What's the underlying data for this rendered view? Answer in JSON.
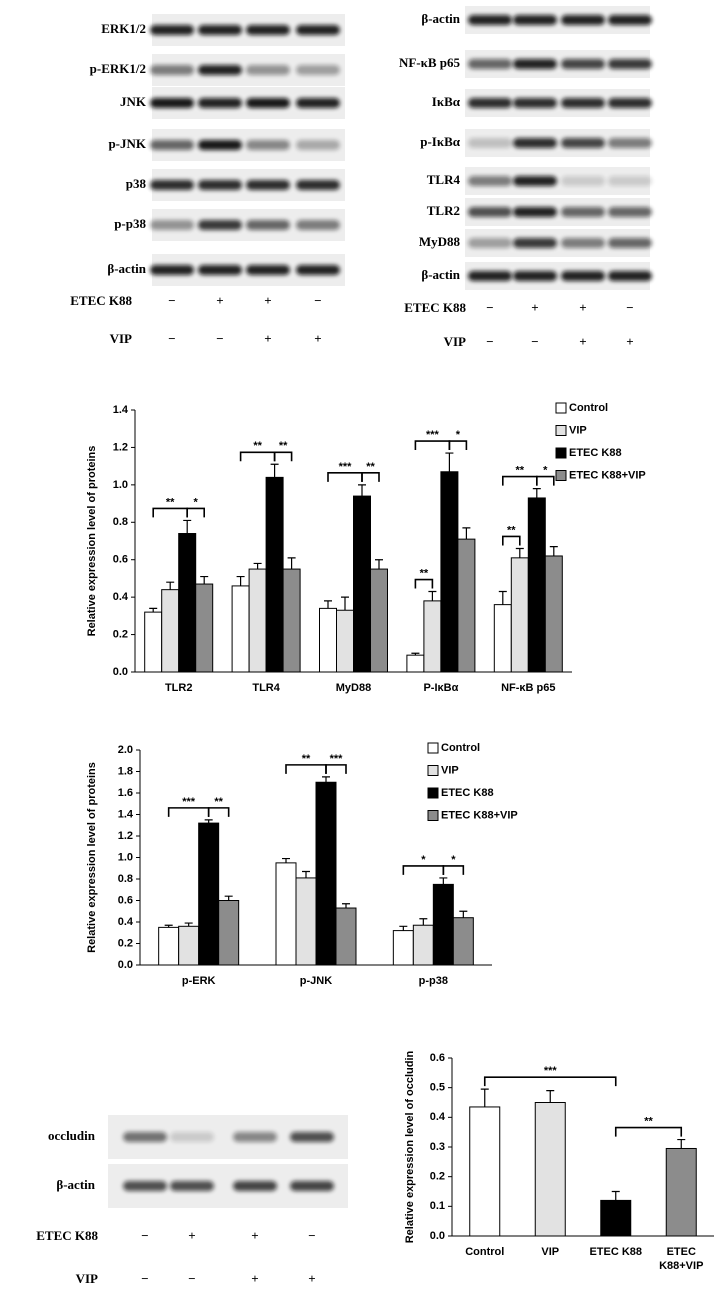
{
  "blots": [
    {
      "rows": [
        {
          "label": "ERK1/2"
        },
        {
          "label": "p-ERK1/2"
        },
        {
          "label": "JNK"
        },
        {
          "label": "p-JNK"
        },
        {
          "label": "p38"
        },
        {
          "label": "p-p38"
        },
        {
          "label": "β-actin"
        }
      ],
      "treatments": [
        {
          "label": "ETEC K88",
          "signs": [
            "−",
            "+",
            "+",
            "−"
          ]
        },
        {
          "label": "VIP",
          "signs": [
            "−",
            "−",
            "+",
            "+"
          ]
        }
      ]
    },
    {
      "rows": [
        {
          "label": "β-actin"
        },
        {
          "label": "NF-κB p65"
        },
        {
          "label": "IκBα"
        },
        {
          "label": "p-IκBα"
        },
        {
          "label": "TLR4"
        },
        {
          "label": "TLR2"
        },
        {
          "label": "MyD88"
        },
        {
          "label": "β-actin"
        }
      ],
      "treatments": [
        {
          "label": "ETEC K88",
          "signs": [
            "−",
            "+",
            "+",
            "−"
          ]
        },
        {
          "label": "VIP",
          "signs": [
            "−",
            "−",
            "+",
            "+"
          ]
        }
      ]
    },
    {
      "rows": [
        {
          "label": "occludin"
        },
        {
          "label": "β-actin"
        }
      ],
      "treatments": [
        {
          "label": "ETEC K88",
          "signs": [
            "−",
            "+",
            "+",
            "−"
          ]
        },
        {
          "label": "VIP",
          "signs": [
            "−",
            "−",
            "+",
            "+"
          ]
        }
      ]
    }
  ],
  "chart_data": [
    {
      "type": "bar",
      "y_label": "Relative expression level of proteins",
      "categories": [
        "TLR2",
        "TLR4",
        "MyD88",
        "P-IκBα",
        "NF-κB p65"
      ],
      "series": [
        {
          "name": "Control",
          "color": "#ffffff",
          "values": [
            0.32,
            0.46,
            0.34,
            0.09,
            0.36
          ],
          "errors": [
            0.02,
            0.05,
            0.04,
            0.01,
            0.07
          ]
        },
        {
          "name": "VIP",
          "color": "#e2e2e2",
          "values": [
            0.44,
            0.55,
            0.33,
            0.38,
            0.61
          ],
          "errors": [
            0.04,
            0.03,
            0.07,
            0.05,
            0.05
          ]
        },
        {
          "name": "ETEC K88",
          "color": "#000000",
          "values": [
            0.74,
            1.04,
            0.94,
            1.07,
            0.93
          ],
          "errors": [
            0.07,
            0.07,
            0.06,
            0.1,
            0.05
          ]
        },
        {
          "name": "ETEC K88+VIP",
          "color": "#8c8c8c",
          "values": [
            0.47,
            0.55,
            0.55,
            0.71,
            0.62
          ],
          "errors": [
            0.04,
            0.06,
            0.05,
            0.06,
            0.05
          ]
        }
      ],
      "ylim": [
        0,
        1.4
      ],
      "yticks": [
        {
          "value": 0,
          "label": "0.0"
        },
        0.2,
        0.4,
        0.6,
        0.8,
        {
          "value": 1,
          "label": "1.0"
        },
        1.2,
        1.4
      ],
      "legend": "top-right",
      "annotations": [
        {
          "category": 0,
          "pair": [
            0,
            2
          ],
          "text": "**"
        },
        {
          "category": 0,
          "pair": [
            2,
            3
          ],
          "text": "*"
        },
        {
          "category": 1,
          "pair": [
            0,
            2
          ],
          "text": "**"
        },
        {
          "category": 1,
          "pair": [
            2,
            3
          ],
          "text": "**"
        },
        {
          "category": 2,
          "pair": [
            0,
            2
          ],
          "text": "***"
        },
        {
          "category": 2,
          "pair": [
            2,
            3
          ],
          "text": "**"
        },
        {
          "category": 3,
          "pair": [
            0,
            1
          ],
          "text": "**"
        },
        {
          "category": 3,
          "pair": [
            0,
            2
          ],
          "text": "***"
        },
        {
          "category": 3,
          "pair": [
            2,
            3
          ],
          "text": "*"
        },
        {
          "category": 4,
          "pair": [
            0,
            1
          ],
          "text": "**"
        },
        {
          "category": 4,
          "pair": [
            0,
            2
          ],
          "text": "**"
        },
        {
          "category": 4,
          "pair": [
            2,
            3
          ],
          "text": "*"
        }
      ]
    },
    {
      "type": "bar",
      "y_label": "Relative expression level of proteins",
      "categories": [
        "p-ERK",
        "p-JNK",
        "p-p38"
      ],
      "series": [
        {
          "name": "Control",
          "color": "#ffffff",
          "values": [
            0.35,
            0.95,
            0.32
          ],
          "errors": [
            0.02,
            0.04,
            0.04
          ]
        },
        {
          "name": "VIP",
          "color": "#e2e2e2",
          "values": [
            0.36,
            0.81,
            0.37
          ],
          "errors": [
            0.03,
            0.06,
            0.06
          ]
        },
        {
          "name": "ETEC K88",
          "color": "#000000",
          "values": [
            1.32,
            1.7,
            0.75
          ],
          "errors": [
            0.03,
            0.05,
            0.06
          ]
        },
        {
          "name": "ETEC K88+VIP",
          "color": "#8c8c8c",
          "values": [
            0.6,
            0.53,
            0.44
          ],
          "errors": [
            0.04,
            0.04,
            0.06
          ]
        }
      ],
      "ylim": [
        0,
        2
      ],
      "yticks": [
        {
          "value": 0,
          "label": "0.0"
        },
        0.2,
        0.4,
        0.6,
        0.8,
        {
          "value": 1,
          "label": "1.0"
        },
        1.2,
        1.4,
        1.6,
        1.8,
        {
          "value": 2,
          "label": "2.0"
        }
      ],
      "legend": "top-right",
      "annotations": [
        {
          "category": 0,
          "pair": [
            0,
            2
          ],
          "text": "***"
        },
        {
          "category": 0,
          "pair": [
            2,
            3
          ],
          "text": "**"
        },
        {
          "category": 1,
          "pair": [
            0,
            2
          ],
          "text": "**"
        },
        {
          "category": 1,
          "pair": [
            2,
            3
          ],
          "text": "***"
        },
        {
          "category": 2,
          "pair": [
            0,
            2
          ],
          "text": "*"
        },
        {
          "category": 2,
          "pair": [
            2,
            3
          ],
          "text": "*"
        }
      ]
    },
    {
      "type": "bar",
      "y_label": "Relative expression level of occludin",
      "categories": [
        "Control",
        "VIP",
        "ETEC K88",
        [
          "ETEC",
          "K88+VIP"
        ]
      ],
      "values": [
        0.435,
        0.45,
        0.12,
        0.295
      ],
      "errors": [
        0.06,
        0.04,
        0.03,
        0.03
      ],
      "colors": [
        "#ffffff",
        "#e2e2e2",
        "#000000",
        "#8c8c8c"
      ],
      "ylim": [
        0,
        0.6
      ],
      "yticks": [
        {
          "value": 0,
          "label": "0.0"
        },
        0.1,
        0.2,
        0.3,
        0.4,
        0.5,
        0.6
      ],
      "annotations": [
        {
          "pair": [
            0,
            2
          ],
          "text": "***"
        },
        {
          "pair": [
            2,
            3
          ],
          "text": "**"
        }
      ]
    }
  ]
}
